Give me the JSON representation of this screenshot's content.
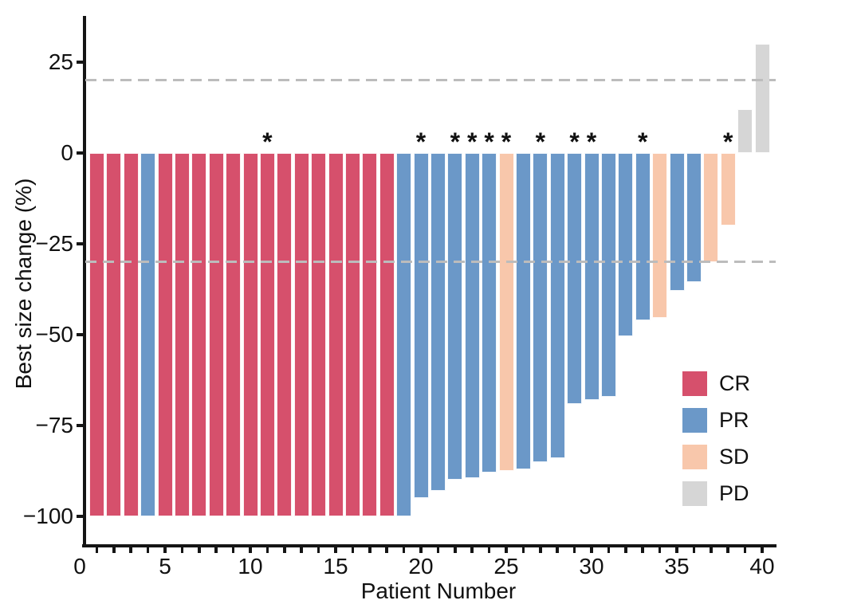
{
  "chart_data": {
    "type": "bar",
    "variant": "waterfall",
    "title": "",
    "xlabel": "Patient Number",
    "ylabel": "Best size change (%)",
    "x_ticks_labeled": [
      0,
      5,
      10,
      15,
      20,
      25,
      30,
      35,
      40
    ],
    "x_minor_tick_step": 1,
    "x_minor_tick_range": [
      1,
      40
    ],
    "y_ticks": [
      25,
      0,
      -25,
      -50,
      -75,
      -100
    ],
    "xlim": [
      0.3,
      40.8
    ],
    "ylim": [
      -108.5,
      37.7
    ],
    "grid": false,
    "annotation_symbol": "*",
    "annotated_patients": [
      11,
      20,
      22,
      23,
      24,
      25,
      27,
      29,
      30,
      33,
      38
    ],
    "reference_lines": {
      "values": [
        20,
        -30
      ],
      "style": "dashed",
      "color": "#bcbcbc"
    },
    "legend": {
      "position": "inside-bottom-right",
      "entries": [
        {
          "key": "CR",
          "label": "CR",
          "color": "#d6506c"
        },
        {
          "key": "PR",
          "label": "PR",
          "color": "#6b98c8"
        },
        {
          "key": "SD",
          "label": "SD",
          "color": "#f8c7ab"
        },
        {
          "key": "PD",
          "label": "PD",
          "color": "#d6d6d6"
        }
      ]
    },
    "patients": [
      {
        "patient": 1,
        "change": -100,
        "response": "CR",
        "annotated": false
      },
      {
        "patient": 2,
        "change": -100,
        "response": "CR",
        "annotated": false
      },
      {
        "patient": 3,
        "change": -100,
        "response": "CR",
        "annotated": false
      },
      {
        "patient": 4,
        "change": -100,
        "response": "PR",
        "annotated": false
      },
      {
        "patient": 5,
        "change": -100,
        "response": "CR",
        "annotated": false
      },
      {
        "patient": 6,
        "change": -100,
        "response": "CR",
        "annotated": false
      },
      {
        "patient": 7,
        "change": -100,
        "response": "CR",
        "annotated": false
      },
      {
        "patient": 8,
        "change": -100,
        "response": "CR",
        "annotated": false
      },
      {
        "patient": 9,
        "change": -100,
        "response": "CR",
        "annotated": false
      },
      {
        "patient": 10,
        "change": -100,
        "response": "CR",
        "annotated": false
      },
      {
        "patient": 11,
        "change": -100,
        "response": "CR",
        "annotated": true
      },
      {
        "patient": 12,
        "change": -100,
        "response": "CR",
        "annotated": false
      },
      {
        "patient": 13,
        "change": -100,
        "response": "CR",
        "annotated": false
      },
      {
        "patient": 14,
        "change": -100,
        "response": "CR",
        "annotated": false
      },
      {
        "patient": 15,
        "change": -100,
        "response": "CR",
        "annotated": false
      },
      {
        "patient": 16,
        "change": -100,
        "response": "CR",
        "annotated": false
      },
      {
        "patient": 17,
        "change": -100,
        "response": "CR",
        "annotated": false
      },
      {
        "patient": 18,
        "change": -100,
        "response": "CR",
        "annotated": false
      },
      {
        "patient": 19,
        "change": -100,
        "response": "PR",
        "annotated": false
      },
      {
        "patient": 20,
        "change": -95,
        "response": "PR",
        "annotated": true
      },
      {
        "patient": 21,
        "change": -93,
        "response": "PR",
        "annotated": false
      },
      {
        "patient": 22,
        "change": -90,
        "response": "PR",
        "annotated": true
      },
      {
        "patient": 23,
        "change": -89.5,
        "response": "PR",
        "annotated": true
      },
      {
        "patient": 24,
        "change": -88,
        "response": "PR",
        "annotated": true
      },
      {
        "patient": 25,
        "change": -87.5,
        "response": "SD",
        "annotated": true
      },
      {
        "patient": 26,
        "change": -87,
        "response": "PR",
        "annotated": false
      },
      {
        "patient": 27,
        "change": -85,
        "response": "PR",
        "annotated": true
      },
      {
        "patient": 28,
        "change": -84,
        "response": "PR",
        "annotated": false
      },
      {
        "patient": 29,
        "change": -69,
        "response": "PR",
        "annotated": true
      },
      {
        "patient": 30,
        "change": -68,
        "response": "PR",
        "annotated": true
      },
      {
        "patient": 31,
        "change": -67,
        "response": "PR",
        "annotated": false
      },
      {
        "patient": 32,
        "change": -50.5,
        "response": "PR",
        "annotated": false
      },
      {
        "patient": 33,
        "change": -46,
        "response": "PR",
        "annotated": true
      },
      {
        "patient": 34,
        "change": -45.5,
        "response": "SD",
        "annotated": false
      },
      {
        "patient": 35,
        "change": -38,
        "response": "PR",
        "annotated": false
      },
      {
        "patient": 36,
        "change": -35.5,
        "response": "PR",
        "annotated": false
      },
      {
        "patient": 37,
        "change": -30,
        "response": "SD",
        "annotated": false
      },
      {
        "patient": 38,
        "change": -20,
        "response": "SD",
        "annotated": true
      },
      {
        "patient": 39,
        "change": 12,
        "response": "PD",
        "annotated": false
      },
      {
        "patient": 40,
        "change": 30,
        "response": "PD",
        "annotated": false
      }
    ]
  }
}
